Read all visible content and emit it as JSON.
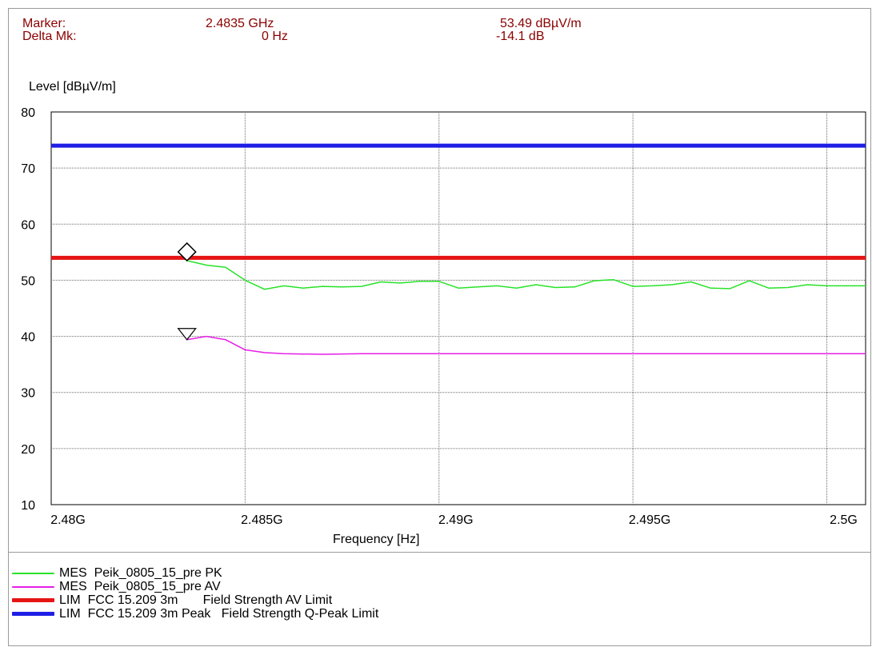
{
  "header": {
    "marker_label": "Marker:",
    "marker_freq": "2.4835 GHz",
    "marker_level": "53.49 dBµV/m",
    "delta_label": "Delta Mk:",
    "delta_freq": "0 Hz",
    "delta_level": "-14.1 dB"
  },
  "legend": [
    {
      "text": "MES  Peik_0805_15_pre PK",
      "color": "#28e228"
    },
    {
      "text": "MES  Peik_0805_15_pre AV",
      "color": "#e61ee6"
    },
    {
      "text": "LIM  FCC 15.209 3m       Field Strength AV Limit",
      "color": "#e61414"
    },
    {
      "text": "LIM  FCC 15.209 3m Peak   Field Strength Q-Peak Limit",
      "color": "#1e1ee6"
    }
  ],
  "colors": {
    "pk": "#28e228",
    "av": "#e61ee6",
    "lim_av": "#e61414",
    "lim_pk": "#1e1ee6",
    "grid": "#6c6c6c",
    "marker_text": "#8b0000"
  },
  "chart_data": {
    "type": "line",
    "ylabel": "Level [dBµV/m]",
    "xlabel": "Frequency [Hz]",
    "xlim": [
      2.48,
      2.501
    ],
    "ylim": [
      10,
      80
    ],
    "x_ticks": [
      2.48,
      2.485,
      2.49,
      2.495,
      2.5
    ],
    "x_tick_labels": [
      "2.48G",
      "2.485G",
      "2.49G",
      "2.495G",
      "2.5G"
    ],
    "y_ticks": [
      10,
      20,
      30,
      40,
      50,
      60,
      70,
      80
    ],
    "y_tick_labels": [
      "10",
      "20",
      "30",
      "40",
      "50",
      "60",
      "70",
      "80"
    ],
    "grid": true,
    "series": [
      {
        "name": "MES  Peik_0805_15_pre PK",
        "x": [
          2.4835,
          2.484,
          2.4845,
          2.485,
          2.4855,
          2.486,
          2.4865,
          2.487,
          2.4875,
          2.488,
          2.4885,
          2.489,
          2.4895,
          2.49,
          2.4905,
          2.491,
          2.4915,
          2.492,
          2.4925,
          2.493,
          2.4935,
          2.494,
          2.4945,
          2.495,
          2.4955,
          2.496,
          2.4965,
          2.497,
          2.4975,
          2.498,
          2.4985,
          2.499,
          2.4995,
          2.5,
          2.5005,
          2.501
        ],
        "y": [
          53.5,
          52.7,
          52.3,
          50.0,
          48.4,
          49.0,
          48.6,
          48.9,
          48.8,
          48.9,
          49.7,
          49.5,
          49.8,
          49.8,
          48.6,
          48.8,
          49.0,
          48.6,
          49.2,
          48.7,
          48.8,
          49.9,
          50.1,
          48.9,
          49.0,
          49.2,
          49.7,
          48.6,
          48.5,
          49.9,
          48.6,
          48.7,
          49.2,
          49.0,
          49.0,
          49.0
        ]
      },
      {
        "name": "MES  Peik_0805_15_pre AV",
        "x": [
          2.4835,
          2.484,
          2.4845,
          2.485,
          2.4855,
          2.486,
          2.487,
          2.488,
          2.489,
          2.49,
          2.491,
          2.492,
          2.493,
          2.494,
          2.495,
          2.496,
          2.497,
          2.498,
          2.499,
          2.5,
          2.501
        ],
        "y": [
          39.4,
          40.0,
          39.4,
          37.6,
          37.1,
          36.9,
          36.8,
          36.9,
          36.9,
          36.9,
          36.9,
          36.9,
          36.9,
          36.9,
          36.9,
          36.9,
          36.9,
          36.9,
          36.9,
          36.9,
          36.9
        ]
      },
      {
        "name": "LIM  FCC 15.209 3m",
        "x": [
          2.48,
          2.501
        ],
        "y": [
          54,
          54
        ]
      },
      {
        "name": "LIM  FCC 15.209 3m Peak",
        "x": [
          2.48,
          2.501
        ],
        "y": [
          74,
          74
        ]
      }
    ],
    "markers": [
      {
        "type": "diamond",
        "x": 2.4835,
        "y": 53.49
      },
      {
        "type": "triangle-down",
        "x": 2.4835,
        "y": 39.4
      }
    ]
  }
}
